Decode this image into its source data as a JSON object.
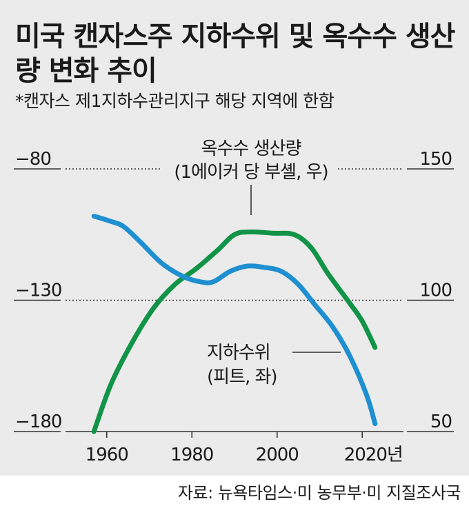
{
  "title": "미국 캔자스주 지하수위 및 옥수수 생산량 변화 추이",
  "subtitle": "*캔자스 제1지하수관리지구 해당 지역에 한함",
  "source": "자료: 뉴욕타임스·미 농무부·미 지질조사국",
  "colors": {
    "groundwater": "#1e8fd0",
    "corn": "#119447",
    "panel": "#ebebeb"
  },
  "chart_data": {
    "type": "line",
    "x_ticks": [
      "1960",
      "1980",
      "2000",
      "2020년"
    ],
    "x_tick_values": [
      1960,
      1980,
      2000,
      2020
    ],
    "xlim": [
      1950,
      2030
    ],
    "left_axis": {
      "ticks": [
        "−80",
        "−130",
        "−180"
      ],
      "tick_values": [
        -80,
        -130,
        -180
      ],
      "ylim": [
        -180,
        -80
      ]
    },
    "right_axis": {
      "ticks": [
        "150",
        "100",
        "50"
      ],
      "tick_values": [
        150,
        100,
        50
      ],
      "ylim": [
        50,
        150
      ]
    },
    "grid": "dotted lines at -80/150 and -130/100",
    "series": [
      {
        "name_lines": [
          "옥수수 생산량",
          "(1에이커 당 부셸, 우)"
        ],
        "axis": "right",
        "color": "#119447",
        "x": [
          1957,
          1961,
          1966,
          1971,
          1976,
          1981,
          1986,
          1990,
          1994,
          1999,
          2004,
          2008,
          2012,
          2017,
          2020,
          2023
        ],
        "y": [
          50,
          68,
          84,
          97,
          106,
          112,
          119,
          125,
          126,
          125.5,
          125,
          120,
          110,
          99,
          92,
          82
        ]
      },
      {
        "name_lines": [
          "지하수위",
          "(피트, 좌)"
        ],
        "axis": "left",
        "color": "#1e8fd0",
        "x": [
          1957,
          1961,
          1964,
          1968,
          1973,
          1978,
          1982,
          1985,
          1989,
          1993,
          1997,
          2001,
          2005,
          2009,
          2013,
          2017,
          2021,
          2023
        ],
        "y": [
          -98,
          -100,
          -102,
          -108,
          -116,
          -121,
          -123,
          -123,
          -119,
          -117,
          -117.5,
          -119,
          -124,
          -132,
          -140,
          -151,
          -166,
          -177
        ]
      }
    ]
  }
}
